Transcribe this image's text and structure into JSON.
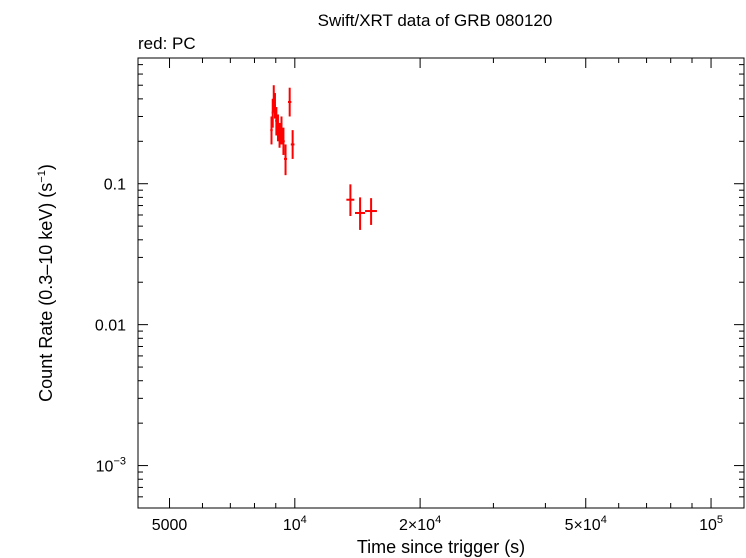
{
  "chart_data": {
    "type": "scatter",
    "title": "Swift/XRT data of GRB 080120",
    "subtitle": "red: PC",
    "xlabel": "Time since trigger (s)",
    "ylabel": {
      "main": "Count Rate (0.3–10 keV) (s",
      "sup": "−1",
      "end": ")"
    },
    "xscale": "log",
    "yscale": "log",
    "xlim": [
      4200,
      120000
    ],
    "ylim": [
      0.0005,
      0.78
    ],
    "x_ticks": [
      {
        "value": 5000,
        "base": "5000",
        "exp": ""
      },
      {
        "value": 10000,
        "base": "10",
        "exp": "4"
      },
      {
        "value": 20000,
        "base": "2×10",
        "exp": "4"
      },
      {
        "value": 50000,
        "base": "5×10",
        "exp": "4"
      },
      {
        "value": 100000,
        "base": "10",
        "exp": "5"
      }
    ],
    "y_ticks": [
      {
        "value": 0.1,
        "base": "0.1",
        "exp": ""
      },
      {
        "value": 0.01,
        "base": "0.01",
        "exp": ""
      },
      {
        "value": 0.001,
        "base": "10",
        "exp": "−3"
      }
    ],
    "series": [
      {
        "color": "#ff0000",
        "points": [
          {
            "x": 8790,
            "xerr": [
              60,
              60
            ],
            "y": 0.24,
            "yerr": [
              0.05,
              0.06
            ]
          },
          {
            "x": 8850,
            "xerr": [
              50,
              50
            ],
            "y": 0.32,
            "yerr": [
              0.07,
              0.08
            ]
          },
          {
            "x": 8900,
            "xerr": [
              50,
              50
            ],
            "y": 0.4,
            "yerr": [
              0.08,
              0.1
            ]
          },
          {
            "x": 8960,
            "xerr": [
              50,
              50
            ],
            "y": 0.36,
            "yerr": [
              0.07,
              0.08
            ]
          },
          {
            "x": 9030,
            "xerr": [
              60,
              60
            ],
            "y": 0.28,
            "yerr": [
              0.06,
              0.07
            ]
          },
          {
            "x": 9110,
            "xerr": [
              60,
              60
            ],
            "y": 0.25,
            "yerr": [
              0.05,
              0.06
            ]
          },
          {
            "x": 9190,
            "xerr": [
              60,
              60
            ],
            "y": 0.22,
            "yerr": [
              0.04,
              0.05
            ]
          },
          {
            "x": 9290,
            "xerr": [
              70,
              70
            ],
            "y": 0.24,
            "yerr": [
              0.05,
              0.06
            ]
          },
          {
            "x": 9390,
            "xerr": [
              70,
              70
            ],
            "y": 0.2,
            "yerr": [
              0.04,
              0.05
            ]
          },
          {
            "x": 9500,
            "xerr": [
              80,
              80
            ],
            "y": 0.15,
            "yerr": [
              0.035,
              0.04
            ]
          },
          {
            "x": 9720,
            "xerr": [
              90,
              90
            ],
            "y": 0.38,
            "yerr": [
              0.08,
              0.1
            ]
          },
          {
            "x": 9880,
            "xerr": [
              100,
              100
            ],
            "y": 0.19,
            "yerr": [
              0.04,
              0.05
            ]
          },
          {
            "x": 13600,
            "xerr": [
              300,
              300
            ],
            "y": 0.077,
            "yerr": [
              0.018,
              0.022
            ]
          },
          {
            "x": 14350,
            "xerr": [
              400,
              400
            ],
            "y": 0.062,
            "yerr": [
              0.015,
              0.018
            ]
          },
          {
            "x": 15250,
            "xerr": [
              500,
              500
            ],
            "y": 0.064,
            "yerr": [
              0.013,
              0.015
            ]
          }
        ]
      }
    ]
  }
}
